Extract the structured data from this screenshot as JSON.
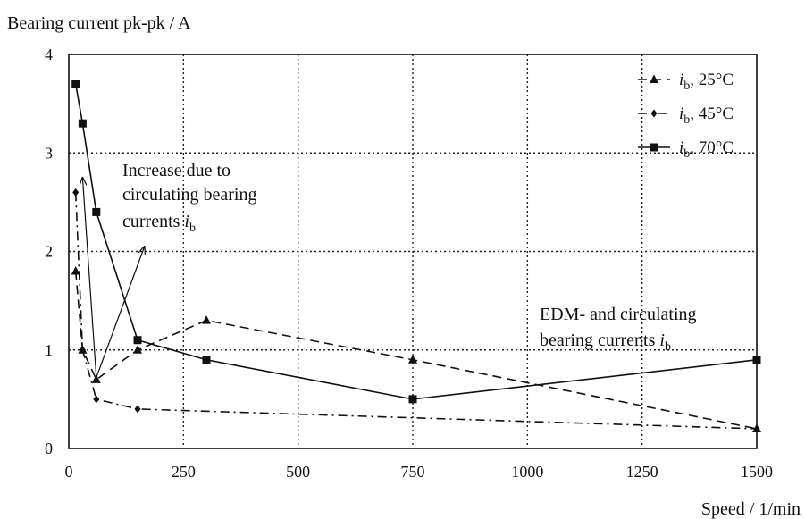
{
  "chart_data": {
    "type": "line",
    "ylabel": "Bearing current pk-pk / A",
    "xlabel": "Speed / 1/min",
    "xlim": [
      0,
      1500
    ],
    "ylim": [
      0,
      4
    ],
    "xticks": [
      0,
      250,
      500,
      750,
      1000,
      1250,
      1500
    ],
    "yticks": [
      0,
      1,
      2,
      3,
      4
    ],
    "grid": true,
    "legend_position": "top-right",
    "series": [
      {
        "name_main": "i",
        "name_sub": "b",
        "name_suffix": ", 25°C",
        "marker": "triangle",
        "line_style": "dashed",
        "x": [
          15,
          30,
          60,
          150,
          300,
          750,
          1500
        ],
        "y": [
          1.8,
          1.0,
          0.7,
          1.0,
          1.3,
          0.9,
          0.2
        ]
      },
      {
        "name_main": "i",
        "name_sub": "b",
        "name_suffix": ", 45°C",
        "marker": "diamond",
        "line_style": "dashdot",
        "x": [
          15,
          30,
          60,
          150,
          1500
        ],
        "y": [
          2.6,
          1.0,
          0.5,
          0.4,
          0.2
        ]
      },
      {
        "name_main": "i",
        "name_sub": "b",
        "name_suffix": ", 70°C",
        "marker": "square",
        "line_style": "solid",
        "x": [
          15,
          30,
          60,
          150,
          300,
          750,
          1500
        ],
        "y": [
          3.7,
          3.3,
          2.4,
          1.1,
          0.9,
          0.5,
          0.9
        ]
      }
    ],
    "annotations": [
      {
        "lines": [
          "Increase due to",
          "circulating bearing"
        ],
        "last_line_main": "currents ",
        "last_line_italic": "i",
        "last_line_sub": "b",
        "arrows": [
          {
            "from": [
              60,
              0.72
            ],
            "to": [
              30,
              2.75
            ]
          },
          {
            "from": [
              60,
              0.72
            ],
            "to": [
              165,
              2.05
            ]
          }
        ]
      },
      {
        "lines": [
          "EDM- and circulating"
        ],
        "last_line_main": "bearing currents ",
        "last_line_italic": "i",
        "last_line_sub": "b"
      }
    ]
  }
}
